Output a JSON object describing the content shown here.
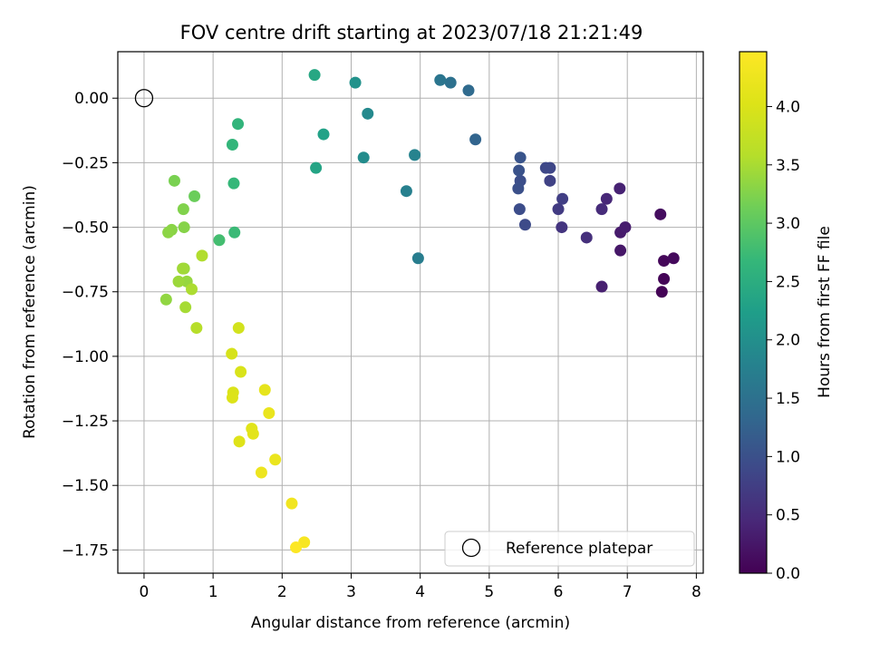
{
  "chart_data": {
    "type": "scatter",
    "title": "FOV centre drift starting at 2023/07/18 21:21:49",
    "xlabel": "Angular distance from reference (arcmin)",
    "ylabel": "Rotation from reference (arcmin)",
    "xlim": [
      -0.38,
      8.1
    ],
    "ylim": [
      -1.84,
      0.18
    ],
    "xticks": [
      "0",
      "1",
      "2",
      "3",
      "4",
      "5",
      "6",
      "7",
      "8"
    ],
    "yticks": [
      "0.00",
      "−0.25",
      "−0.50",
      "−0.75",
      "−1.00",
      "−1.25",
      "−1.50",
      "−1.75"
    ],
    "grid": true,
    "colormap": "viridis",
    "colorbar": {
      "label": "Hours from first FF file",
      "range": [
        0,
        4.47
      ],
      "ticks": [
        "0.0",
        "0.5",
        "1.0",
        "1.5",
        "2.0",
        "2.5",
        "3.0",
        "3.5",
        "4.0"
      ]
    },
    "reference": {
      "label": "Reference platepar",
      "x": 0,
      "y": 0
    },
    "legend_location": "lower right",
    "points": [
      {
        "x": 7.5,
        "y": -0.75,
        "h": 0.02
      },
      {
        "x": 7.53,
        "y": -0.7,
        "h": 0.04
      },
      {
        "x": 7.53,
        "y": -0.63,
        "h": 0.07
      },
      {
        "x": 7.67,
        "y": -0.62,
        "h": 0.1
      },
      {
        "x": 7.48,
        "y": -0.45,
        "h": 0.14
      },
      {
        "x": 6.9,
        "y": -0.59,
        "h": 0.25
      },
      {
        "x": 6.9,
        "y": -0.52,
        "h": 0.3
      },
      {
        "x": 6.97,
        "y": -0.5,
        "h": 0.32
      },
      {
        "x": 6.63,
        "y": -0.73,
        "h": 0.35
      },
      {
        "x": 6.89,
        "y": -0.35,
        "h": 0.38
      },
      {
        "x": 6.7,
        "y": -0.39,
        "h": 0.45
      },
      {
        "x": 6.63,
        "y": -0.43,
        "h": 0.5
      },
      {
        "x": 6.41,
        "y": -0.54,
        "h": 0.55
      },
      {
        "x": 6.05,
        "y": -0.5,
        "h": 0.62
      },
      {
        "x": 6.0,
        "y": -0.43,
        "h": 0.7
      },
      {
        "x": 6.06,
        "y": -0.39,
        "h": 0.75
      },
      {
        "x": 5.88,
        "y": -0.32,
        "h": 0.8
      },
      {
        "x": 5.88,
        "y": -0.27,
        "h": 0.85
      },
      {
        "x": 5.82,
        "y": -0.27,
        "h": 0.88
      },
      {
        "x": 5.52,
        "y": -0.49,
        "h": 0.92
      },
      {
        "x": 5.44,
        "y": -0.43,
        "h": 0.95
      },
      {
        "x": 5.45,
        "y": -0.32,
        "h": 0.97
      },
      {
        "x": 5.42,
        "y": -0.35,
        "h": 1.0
      },
      {
        "x": 5.43,
        "y": -0.28,
        "h": 1.02
      },
      {
        "x": 5.45,
        "y": -0.23,
        "h": 1.05
      },
      {
        "x": 4.8,
        "y": -0.16,
        "h": 1.3
      },
      {
        "x": 4.7,
        "y": 0.03,
        "h": 1.4
      },
      {
        "x": 4.44,
        "y": 0.06,
        "h": 1.5
      },
      {
        "x": 4.29,
        "y": 0.07,
        "h": 1.57
      },
      {
        "x": 3.97,
        "y": -0.62,
        "h": 1.7
      },
      {
        "x": 3.8,
        "y": -0.36,
        "h": 1.75
      },
      {
        "x": 3.92,
        "y": -0.22,
        "h": 1.8
      },
      {
        "x": 3.24,
        "y": -0.06,
        "h": 1.9
      },
      {
        "x": 3.18,
        "y": -0.23,
        "h": 1.95
      },
      {
        "x": 3.06,
        "y": 0.06,
        "h": 2.05
      },
      {
        "x": 2.6,
        "y": -0.14,
        "h": 2.3
      },
      {
        "x": 2.49,
        "y": -0.27,
        "h": 2.35
      },
      {
        "x": 2.47,
        "y": 0.09,
        "h": 2.4
      },
      {
        "x": 1.36,
        "y": -0.1,
        "h": 2.62
      },
      {
        "x": 1.28,
        "y": -0.18,
        "h": 2.65
      },
      {
        "x": 1.3,
        "y": -0.33,
        "h": 2.68
      },
      {
        "x": 1.31,
        "y": -0.52,
        "h": 2.72
      },
      {
        "x": 1.09,
        "y": -0.55,
        "h": 2.8
      },
      {
        "x": 0.73,
        "y": -0.38,
        "h": 3.1
      },
      {
        "x": 0.44,
        "y": -0.32,
        "h": 3.2
      },
      {
        "x": 0.57,
        "y": -0.43,
        "h": 3.25
      },
      {
        "x": 0.58,
        "y": -0.5,
        "h": 3.28
      },
      {
        "x": 0.4,
        "y": -0.51,
        "h": 3.3
      },
      {
        "x": 0.35,
        "y": -0.52,
        "h": 3.32
      },
      {
        "x": 0.32,
        "y": -0.78,
        "h": 3.35
      },
      {
        "x": 0.62,
        "y": -0.71,
        "h": 3.38
      },
      {
        "x": 0.58,
        "y": -0.66,
        "h": 3.4
      },
      {
        "x": 0.5,
        "y": -0.71,
        "h": 3.42
      },
      {
        "x": 0.56,
        "y": -0.66,
        "h": 3.45
      },
      {
        "x": 0.6,
        "y": -0.81,
        "h": 3.48
      },
      {
        "x": 0.69,
        "y": -0.74,
        "h": 3.52
      },
      {
        "x": 0.84,
        "y": -0.61,
        "h": 3.55
      },
      {
        "x": 0.76,
        "y": -0.89,
        "h": 3.6
      },
      {
        "x": 1.37,
        "y": -0.89,
        "h": 3.9
      },
      {
        "x": 1.27,
        "y": -0.99,
        "h": 3.95
      },
      {
        "x": 1.4,
        "y": -1.06,
        "h": 3.98
      },
      {
        "x": 1.29,
        "y": -1.14,
        "h": 4.0
      },
      {
        "x": 1.28,
        "y": -1.16,
        "h": 4.02
      },
      {
        "x": 1.38,
        "y": -1.33,
        "h": 4.05
      },
      {
        "x": 1.56,
        "y": -1.28,
        "h": 4.08
      },
      {
        "x": 1.58,
        "y": -1.3,
        "h": 4.1
      },
      {
        "x": 1.75,
        "y": -1.13,
        "h": 4.15
      },
      {
        "x": 1.81,
        "y": -1.22,
        "h": 4.2
      },
      {
        "x": 1.9,
        "y": -1.4,
        "h": 4.22
      },
      {
        "x": 1.7,
        "y": -1.45,
        "h": 4.25
      },
      {
        "x": 2.14,
        "y": -1.57,
        "h": 4.3
      },
      {
        "x": 2.32,
        "y": -1.72,
        "h": 4.38
      },
      {
        "x": 2.2,
        "y": -1.74,
        "h": 4.45
      }
    ]
  }
}
